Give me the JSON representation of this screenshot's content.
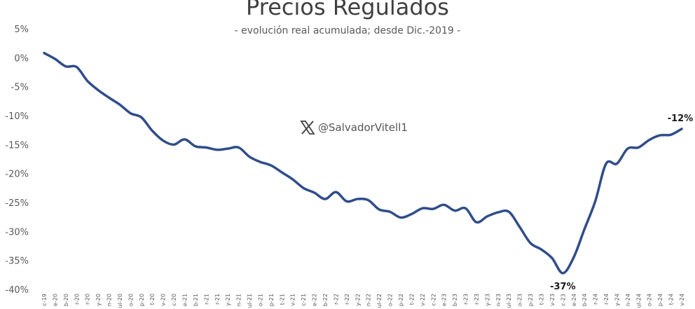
{
  "chart_data": {
    "type": "line",
    "title": "Precios Regulados",
    "subtitle": "- evolución real acumulada; desde Dic.-2019 -",
    "watermark": "@SalvadorVitell1",
    "watermark_icon": "x-logo-icon",
    "line_color": "#2f4d8a",
    "xlabel": "",
    "ylabel": "",
    "ylim": [
      -40,
      5
    ],
    "yticks": [
      5,
      0,
      -5,
      -10,
      -15,
      -20,
      -25,
      -30,
      -35,
      -40
    ],
    "ytick_labels": [
      "5%",
      "0%",
      "-5%",
      "-10%",
      "-15%",
      "-20%",
      "-25%",
      "-30%",
      "-35%",
      "-40%"
    ],
    "grid": false,
    "legend": "none",
    "x": [
      "c-19",
      "e-20",
      "b-20",
      "r-20",
      "r-20",
      "y-20",
      "n-20",
      "ul-20",
      "o-20",
      "p-20",
      "t-20",
      "v-20",
      "c-20",
      "e-21",
      "b-21",
      "r-21",
      "r-21",
      "y-21",
      "n-21",
      "ul-21",
      "o-21",
      "p-21",
      "t-21",
      "v-21",
      "c-21",
      "e-22",
      "b-22",
      "r-22",
      "r-22",
      "y-22",
      "n-22",
      "ul-22",
      "o-22",
      "p-22",
      "t-22",
      "v-22",
      "c-22",
      "e-23",
      "b-23",
      "r-23",
      "r-23",
      "y-23",
      "n-23",
      "ul-23",
      "o-23",
      "p-23",
      "t-23",
      "v-23",
      "c-23",
      "e-24",
      "b-24",
      "r-24",
      "r-24",
      "y-24",
      "n-24",
      "ul-24",
      "o-24",
      "p-24",
      "t-24",
      "v-24"
    ],
    "values": [
      0.8,
      -0.2,
      -1.5,
      -1.6,
      -4.0,
      -5.6,
      -6.9,
      -8.1,
      -9.6,
      -10.3,
      -12.6,
      -14.3,
      -15.0,
      -14.1,
      -15.3,
      -15.5,
      -15.9,
      -15.7,
      -15.5,
      -17.1,
      -18.0,
      -18.6,
      -19.8,
      -21.0,
      -22.5,
      -23.3,
      -24.4,
      -23.2,
      -24.8,
      -24.4,
      -24.6,
      -26.2,
      -26.6,
      -27.6,
      -27.0,
      -26.0,
      -26.1,
      -25.4,
      -26.4,
      -26.0,
      -28.4,
      -27.4,
      -26.7,
      -26.6,
      -29.2,
      -32.0,
      -33.1,
      -34.6,
      -37.2,
      -34.5,
      -29.6,
      -24.8,
      -18.3,
      -18.3,
      -15.7,
      -15.5,
      -14.2,
      -13.4,
      -13.3,
      -12.3
    ],
    "annotations": [
      {
        "index": 48,
        "label": "-37%",
        "position": "below"
      },
      {
        "index": 59,
        "label": "-12%",
        "position": "above"
      }
    ]
  }
}
